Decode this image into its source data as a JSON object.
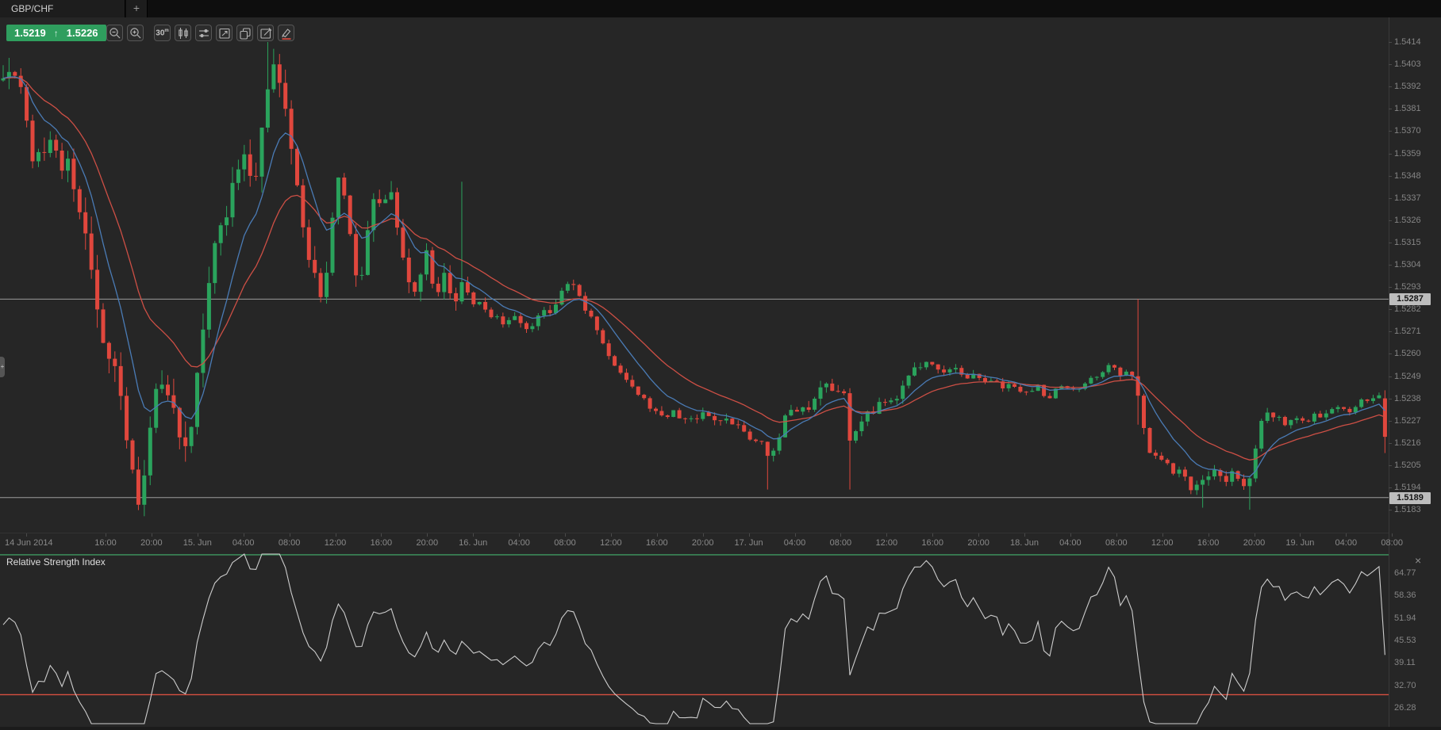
{
  "window": {
    "tab_label": "GBP/CHF",
    "new_tab_label": "+"
  },
  "quote": {
    "bid": "1.5219",
    "ask": "1.5226",
    "direction": "up"
  },
  "toolbar": {
    "timeframe_label": "30",
    "timeframe_unit": "m",
    "buttons": [
      "zoom-out",
      "zoom-in",
      "timeframe",
      "chart-type-candles",
      "indicators",
      "snapshot",
      "copy-chart",
      "edit",
      "draw-tool"
    ]
  },
  "chart_data": {
    "type": "candlestick",
    "symbol": "GBP/CHF",
    "timeframe": "30m",
    "price_axis": {
      "ticks": [
        "1.5414",
        "1.5403",
        "1.5392",
        "1.5381",
        "1.5370",
        "1.5359",
        "1.5348",
        "1.5337",
        "1.5326",
        "1.5315",
        "1.5304",
        "1.5293",
        "1.5282",
        "1.5271",
        "1.5260",
        "1.5249",
        "1.5238",
        "1.5227",
        "1.5216",
        "1.5205",
        "1.5194",
        "1.5183"
      ]
    },
    "markers": [
      {
        "label": "1.5287",
        "value": 1.5287
      },
      {
        "label": "1.5189",
        "value": 1.5189
      }
    ],
    "time_axis": {
      "labels": [
        "14 Jun 2014",
        "16:00",
        "20:00",
        "15. Jun",
        "04:00",
        "08:00",
        "12:00",
        "16:00",
        "20:00",
        "16. Jun",
        "04:00",
        "08:00",
        "12:00",
        "16:00",
        "20:00",
        "17. Jun",
        "04:00",
        "08:00",
        "12:00",
        "16:00",
        "20:00",
        "18. Jun",
        "04:00",
        "08:00",
        "12:00",
        "16:00",
        "20:00",
        "19. Jun",
        "04:00",
        "08:00"
      ]
    },
    "series": {
      "price_anchors": [
        [
          5,
          1.5395
        ],
        [
          12,
          1.5403
        ],
        [
          25,
          1.5385
        ],
        [
          33,
          1.5362
        ],
        [
          45,
          1.5355
        ],
        [
          55,
          1.5365
        ],
        [
          65,
          1.5352
        ],
        [
          75,
          1.5358
        ],
        [
          85,
          1.5338
        ],
        [
          95,
          1.5315
        ],
        [
          105,
          1.529
        ],
        [
          112,
          1.5268
        ],
        [
          120,
          1.5255
        ],
        [
          128,
          1.5242
        ],
        [
          135,
          1.5225
        ],
        [
          142,
          1.5205
        ],
        [
          150,
          1.5192
        ],
        [
          158,
          1.5205
        ],
        [
          165,
          1.5225
        ],
        [
          172,
          1.5245
        ],
        [
          180,
          1.5252
        ],
        [
          188,
          1.5232
        ],
        [
          196,
          1.5215
        ],
        [
          202,
          1.521
        ],
        [
          210,
          1.5235
        ],
        [
          218,
          1.5265
        ],
        [
          226,
          1.5295
        ],
        [
          234,
          1.531
        ],
        [
          242,
          1.532
        ],
        [
          250,
          1.5335
        ],
        [
          258,
          1.5352
        ],
        [
          264,
          1.536
        ],
        [
          270,
          1.5345
        ],
        [
          276,
          1.5338
        ],
        [
          282,
          1.536
        ],
        [
          288,
          1.5385
        ],
        [
          294,
          1.5405
        ],
        [
          300,
          1.5398
        ],
        [
          306,
          1.5385
        ],
        [
          312,
          1.538
        ],
        [
          318,
          1.536
        ],
        [
          324,
          1.534
        ],
        [
          330,
          1.5322
        ],
        [
          336,
          1.5312
        ],
        [
          342,
          1.53
        ],
        [
          350,
          1.529
        ],
        [
          356,
          1.5305
        ],
        [
          362,
          1.533
        ],
        [
          368,
          1.535
        ],
        [
          374,
          1.5342
        ],
        [
          380,
          1.5325
        ],
        [
          386,
          1.5305
        ],
        [
          392,
          1.5295
        ],
        [
          398,
          1.531
        ],
        [
          404,
          1.533
        ],
        [
          410,
          1.534
        ],
        [
          418,
          1.5332
        ],
        [
          426,
          1.534
        ],
        [
          434,
          1.532
        ],
        [
          442,
          1.53
        ],
        [
          450,
          1.5292
        ],
        [
          458,
          1.53
        ],
        [
          464,
          1.531
        ],
        [
          470,
          1.5295
        ],
        [
          476,
          1.5288
        ],
        [
          482,
          1.5305
        ],
        [
          488,
          1.529
        ],
        [
          494,
          1.5278
        ],
        [
          500,
          1.5295
        ],
        [
          506,
          1.53
        ],
        [
          512,
          1.5282
        ],
        [
          520,
          1.5285
        ],
        [
          530,
          1.528
        ],
        [
          540,
          1.5278
        ],
        [
          550,
          1.5275
        ],
        [
          560,
          1.5278
        ],
        [
          570,
          1.5272
        ],
        [
          580,
          1.5275
        ],
        [
          590,
          1.528
        ],
        [
          600,
          1.5282
        ],
        [
          610,
          1.529
        ],
        [
          620,
          1.5295
        ],
        [
          630,
          1.5288
        ],
        [
          640,
          1.528
        ],
        [
          650,
          1.527
        ],
        [
          660,
          1.5262
        ],
        [
          670,
          1.5255
        ],
        [
          680,
          1.5248
        ],
        [
          690,
          1.5242
        ],
        [
          700,
          1.5238
        ],
        [
          710,
          1.5232
        ],
        [
          720,
          1.5228
        ],
        [
          730,
          1.5232
        ],
        [
          740,
          1.5228
        ],
        [
          750,
          1.5226
        ],
        [
          760,
          1.523
        ],
        [
          770,
          1.5228
        ],
        [
          780,
          1.5226
        ],
        [
          790,
          1.5228
        ],
        [
          800,
          1.5224
        ],
        [
          810,
          1.5222
        ],
        [
          820,
          1.5218
        ],
        [
          830,
          1.5215
        ],
        [
          838,
          1.5205
        ],
        [
          846,
          1.5218
        ],
        [
          854,
          1.5228
        ],
        [
          862,
          1.5232
        ],
        [
          870,
          1.523
        ],
        [
          880,
          1.5235
        ],
        [
          890,
          1.524
        ],
        [
          900,
          1.5246
        ],
        [
          910,
          1.5242
        ],
        [
          920,
          1.5238
        ],
        [
          926,
          1.521
        ],
        [
          934,
          1.5225
        ],
        [
          942,
          1.5232
        ],
        [
          950,
          1.523
        ],
        [
          958,
          1.5235
        ],
        [
          966,
          1.524
        ],
        [
          974,
          1.5238
        ],
        [
          982,
          1.5244
        ],
        [
          990,
          1.525
        ],
        [
          1000,
          1.5254
        ],
        [
          1010,
          1.5258
        ],
        [
          1020,
          1.5252
        ],
        [
          1030,
          1.525
        ],
        [
          1040,
          1.5252
        ],
        [
          1050,
          1.5248
        ],
        [
          1060,
          1.525
        ],
        [
          1070,
          1.5246
        ],
        [
          1080,
          1.5248
        ],
        [
          1090,
          1.5244
        ],
        [
          1100,
          1.5246
        ],
        [
          1110,
          1.5242
        ],
        [
          1120,
          1.524
        ],
        [
          1130,
          1.5244
        ],
        [
          1140,
          1.5238
        ],
        [
          1150,
          1.5242
        ],
        [
          1160,
          1.5244
        ],
        [
          1170,
          1.5242
        ],
        [
          1180,
          1.5246
        ],
        [
          1190,
          1.5248
        ],
        [
          1200,
          1.5252
        ],
        [
          1210,
          1.5256
        ],
        [
          1220,
          1.525
        ],
        [
          1228,
          1.5252
        ],
        [
          1236,
          1.5245
        ],
        [
          1244,
          1.5225
        ],
        [
          1252,
          1.5212
        ],
        [
          1260,
          1.5205
        ],
        [
          1268,
          1.5208
        ],
        [
          1276,
          1.5202
        ],
        [
          1284,
          1.5205
        ],
        [
          1292,
          1.5198
        ],
        [
          1300,
          1.5192
        ],
        [
          1308,
          1.5195
        ],
        [
          1316,
          1.52
        ],
        [
          1324,
          1.5202
        ],
        [
          1332,
          1.5198
        ],
        [
          1340,
          1.52
        ],
        [
          1350,
          1.5196
        ],
        [
          1358,
          1.5192
        ],
        [
          1366,
          1.5212
        ],
        [
          1374,
          1.5228
        ],
        [
          1382,
          1.5232
        ],
        [
          1390,
          1.5228
        ],
        [
          1400,
          1.5225
        ],
        [
          1410,
          1.5228
        ],
        [
          1420,
          1.5226
        ],
        [
          1430,
          1.523
        ],
        [
          1440,
          1.5228
        ],
        [
          1450,
          1.5232
        ],
        [
          1460,
          1.5234
        ],
        [
          1470,
          1.5232
        ],
        [
          1480,
          1.5236
        ],
        [
          1490,
          1.5238
        ],
        [
          1500,
          1.524
        ],
        [
          1508,
          1.5238
        ],
        [
          1513,
          1.5219
        ]
      ],
      "volatility_anchors": [
        [
          0,
          0.0016
        ],
        [
          100,
          0.002
        ],
        [
          150,
          0.0022
        ],
        [
          220,
          0.0018
        ],
        [
          300,
          0.0018
        ],
        [
          370,
          0.0014
        ],
        [
          450,
          0.0012
        ],
        [
          505,
          0.0012
        ],
        [
          515,
          0.0005
        ],
        [
          620,
          0.0006
        ],
        [
          700,
          0.0005
        ],
        [
          840,
          0.0007
        ],
        [
          930,
          0.0008
        ],
        [
          1010,
          0.0005
        ],
        [
          1100,
          0.0004
        ],
        [
          1210,
          0.0004
        ],
        [
          1250,
          0.0008
        ],
        [
          1330,
          0.0007
        ],
        [
          1420,
          0.0004
        ],
        [
          1500,
          0.0004
        ],
        [
          1513,
          0.0009
        ]
      ],
      "wick_overrides": [
        [
          150,
          null,
          1.5183
        ],
        [
          294,
          1.5414,
          null
        ],
        [
          500,
          1.5345,
          null
        ],
        [
          838,
          null,
          1.5193
        ],
        [
          926,
          null,
          1.5193
        ],
        [
          1237,
          1.5287,
          1.5225
        ],
        [
          1307,
          null,
          1.5184
        ],
        [
          1357,
          null,
          1.5183
        ]
      ],
      "final_candle": [
        1.5238,
        1.5242,
        1.5211,
        1.5219
      ]
    },
    "moving_averages": [
      {
        "name": "ema-fast",
        "period": 9,
        "color": "#4a7bb5"
      },
      {
        "name": "ema-slow",
        "period": 21,
        "color": "#cd4f45"
      }
    ],
    "indicator": {
      "name": "Relative Strength Index",
      "period": 14,
      "close_label": "×",
      "ticks": [
        "64.77",
        "58.36",
        "51.94",
        "45.53",
        "39.11",
        "32.70",
        "26.28"
      ],
      "levels": [
        {
          "value": 70,
          "color": "#3f9960"
        },
        {
          "value": 30,
          "color": "#d94f41"
        }
      ]
    },
    "colors": {
      "background": "#262626",
      "bull": "#2aa35c",
      "bear": "#e0473d",
      "sr_line": "#9b9b9b",
      "axis_text": "#858585",
      "badge_bg": "#bdbdbd",
      "badge_text": "#161616",
      "rsi_line": "#cdcdcd",
      "quote_bg": "#2f9e5e",
      "grid_border": "#3a3a3a"
    }
  }
}
